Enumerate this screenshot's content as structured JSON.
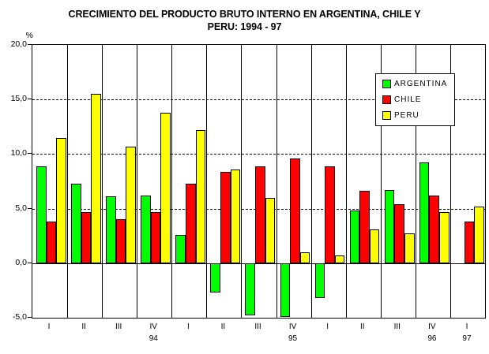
{
  "title": {
    "line1": "CRECIMIENTO DEL PRODUCTO BRUTO INTERNO EN ARGENTINA, CHILE Y",
    "line2": "PERU: 1994 - 97"
  },
  "y_axis": {
    "unit": "%",
    "ticks": [
      {
        "value": 20,
        "label": "20,0"
      },
      {
        "value": 15,
        "label": "15,0"
      },
      {
        "value": 10,
        "label": "10,0"
      },
      {
        "value": 5,
        "label": "5,0"
      },
      {
        "value": 0,
        "label": "0,0"
      },
      {
        "value": -5,
        "label": "-5,0"
      }
    ]
  },
  "x_axis": {
    "quarters": [
      "I",
      "II",
      "III",
      "IV",
      "I",
      "II",
      "III",
      "IV",
      "I",
      "II",
      "III",
      "IV",
      "I"
    ],
    "years": [
      {
        "group_index": 3,
        "label": "94"
      },
      {
        "group_index": 7,
        "label": "95"
      },
      {
        "group_index": 11,
        "label": "96"
      },
      {
        "group_index": 12,
        "label": "97"
      }
    ]
  },
  "legend": {
    "items": [
      {
        "label": "ARGENTINA",
        "color": "#00FF00"
      },
      {
        "label": "CHILE",
        "color": "#FF0000"
      },
      {
        "label": "PERU",
        "color": "#FFFF00"
      }
    ]
  },
  "chart_data": {
    "type": "bar",
    "title": "CRECIMIENTO DEL PRODUCTO BRUTO INTERNO EN ARGENTINA, CHILE Y PERU: 1994 - 97",
    "categories": [
      "I-94",
      "II-94",
      "III-94",
      "IV-94",
      "I-95",
      "II-95",
      "III-95",
      "IV-95",
      "I-96",
      "II-96",
      "III-96",
      "IV-96",
      "I-97"
    ],
    "series": [
      {
        "name": "ARGENTINA",
        "color": "#00FF00",
        "values": [
          8.9,
          7.3,
          6.1,
          6.2,
          2.6,
          -2.7,
          -4.8,
          -4.9,
          -3.2,
          4.8,
          6.7,
          9.2,
          null
        ]
      },
      {
        "name": "CHILE",
        "color": "#FF0000",
        "values": [
          3.8,
          4.7,
          4.0,
          4.7,
          7.3,
          8.4,
          8.9,
          9.6,
          8.9,
          6.6,
          5.4,
          6.2,
          3.8
        ]
      },
      {
        "name": "PERU",
        "color": "#FFFF00",
        "values": [
          11.5,
          15.5,
          10.7,
          13.8,
          12.2,
          8.6,
          6.0,
          1.0,
          0.7,
          3.1,
          2.7,
          4.7,
          5.2
        ]
      }
    ],
    "ylim": [
      -5,
      20
    ],
    "ylabel": "%",
    "grid": {
      "dashed_at": [
        15,
        10,
        5
      ]
    },
    "legend_position": "top-right"
  }
}
